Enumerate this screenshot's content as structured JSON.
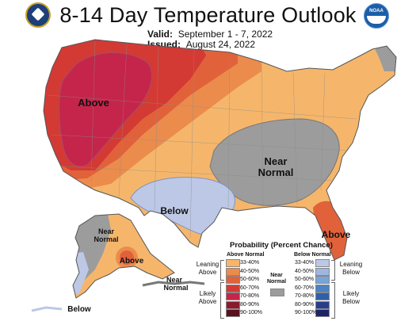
{
  "header": {
    "title": "8-14 Day Temperature Outlook",
    "valid_label": "Valid:",
    "valid_dates": "September 1 - 7, 2022",
    "issued_label": "Issued:",
    "issued_date": "August 24, 2022",
    "left_logo": "doc-seal-icon",
    "right_logo": "noaa-logo-icon",
    "right_logo_text": "NOAA"
  },
  "map": {
    "region_labels": {
      "above_west": "Above",
      "near_normal_central": [
        "Near",
        "Normal"
      ],
      "below_texas": "Below",
      "above_florida": "Above",
      "near_normal_alaska_west": [
        "Near",
        "Normal"
      ],
      "above_alaska": "Above",
      "near_normal_aleutians": [
        "Near",
        "Normal"
      ],
      "below_alaska_southwest": "Below"
    },
    "colors": {
      "above_33_40": "#f5b66b",
      "above_40_50": "#eb8c4c",
      "above_50_60": "#e1623a",
      "above_60_70": "#d33a34",
      "above_70_80": "#c5254a",
      "below_33_40": "#bdc8e6",
      "near_normal": "#9c9c9c",
      "ocean": "#ffffff",
      "border": "#555555"
    }
  },
  "legend": {
    "title": "Probability (Percent Chance)",
    "above_header": "Above Normal",
    "below_header": "Below Normal",
    "near_header": [
      "Near",
      "Normal"
    ],
    "above_rows": [
      {
        "label": "33-40%",
        "color": "#f5b66b"
      },
      {
        "label": "40-50%",
        "color": "#eb8c4c"
      },
      {
        "label": "50-60%",
        "color": "#e1623a"
      },
      {
        "label": "60-70%",
        "color": "#d33a34"
      },
      {
        "label": "70-80%",
        "color": "#c5254a"
      },
      {
        "label": "80-90%",
        "color": "#8c1a2e"
      },
      {
        "label": "90-100%",
        "color": "#5a1020"
      }
    ],
    "below_rows": [
      {
        "label": "33-40%",
        "color": "#bdc8e6"
      },
      {
        "label": "40-50%",
        "color": "#9fb7e0"
      },
      {
        "label": "50-60%",
        "color": "#79a4d8"
      },
      {
        "label": "60-70%",
        "color": "#4b83c4"
      },
      {
        "label": "70-80%",
        "color": "#2f5faa"
      },
      {
        "label": "80-90%",
        "color": "#273f8a"
      },
      {
        "label": "90-100%",
        "color": "#1d2466"
      }
    ],
    "near_color": "#9c9c9c",
    "leaning_above": [
      "Leaning",
      "Above"
    ],
    "likely_above": [
      "Likely",
      "Above"
    ],
    "leaning_below": [
      "Leaning",
      "Below"
    ],
    "likely_below": [
      "Likely",
      "Below"
    ]
  }
}
